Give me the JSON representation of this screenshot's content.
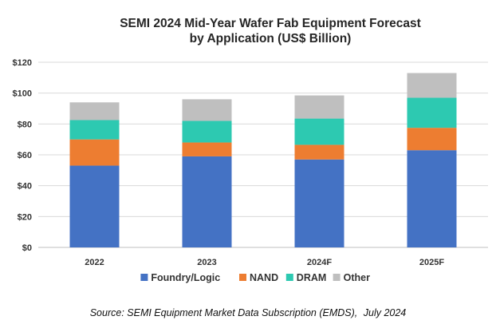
{
  "chart_data": {
    "type": "bar",
    "stacked": true,
    "title": "SEMI 2024 Mid-Year Wafer Fab Equipment Forecast",
    "subtitle": "by Application (US$ Billion)",
    "categories": [
      "2022",
      "2023",
      "2024F",
      "2025F"
    ],
    "series": [
      {
        "name": "Foundry/Logic",
        "color": "#4472C4",
        "values": [
          53,
          59,
          57,
          63
        ]
      },
      {
        "name": "NAND",
        "color": "#ED7D31",
        "values": [
          17,
          9,
          9.5,
          14.5
        ]
      },
      {
        "name": "DRAM",
        "color": "#2DC9B1",
        "values": [
          12.5,
          14,
          17,
          19.5
        ]
      },
      {
        "name": "Other",
        "color": "#BFBFBF",
        "values": [
          11.5,
          14,
          15,
          16
        ]
      }
    ],
    "ylim": [
      0,
      120
    ],
    "yticks": [
      0,
      20,
      40,
      60,
      80,
      100,
      120
    ],
    "ytick_labels": [
      "$0",
      "$20",
      "$40",
      "$60",
      "$80",
      "$100",
      "$120"
    ],
    "xlabel": "",
    "ylabel": "",
    "grid": true,
    "legend_position": "bottom"
  },
  "source_label": "Source: SEMI Equipment Market Data Subscription (EMDS),",
  "source_date": "July 2024"
}
